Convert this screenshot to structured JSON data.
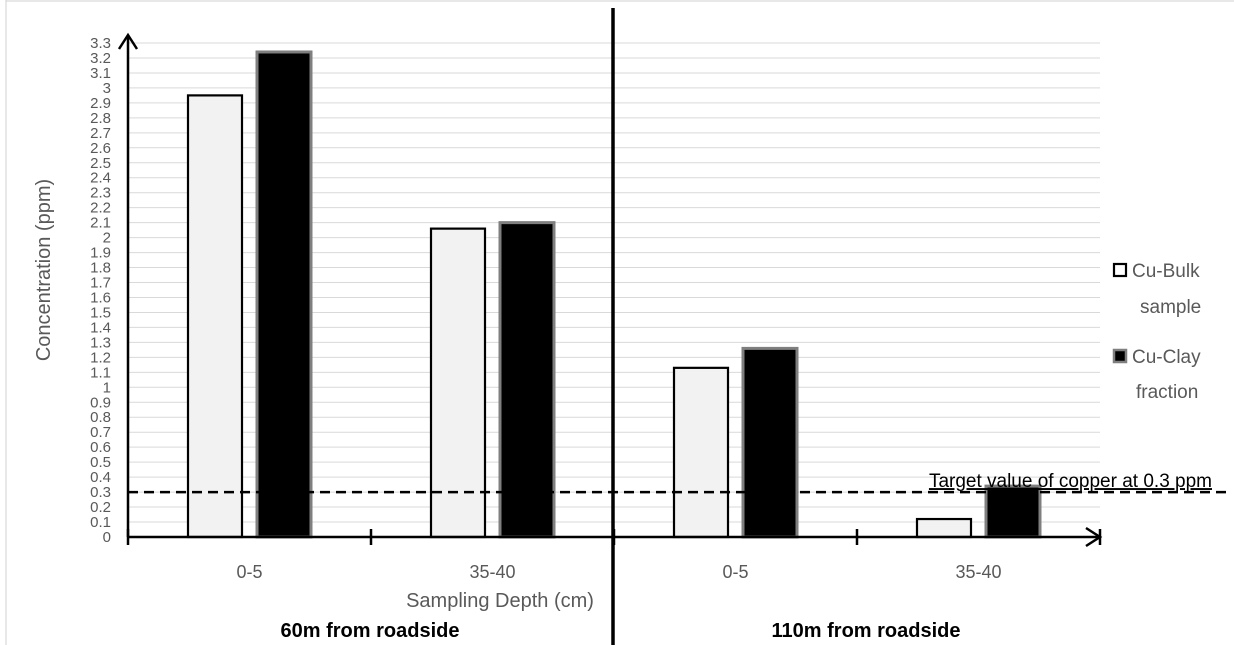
{
  "chart_data": {
    "type": "bar",
    "title": "",
    "xlabel": "Sampling Depth (cm)",
    "ylabel": "Concentration (ppm)",
    "ylim": [
      0,
      3.3
    ],
    "y_ticks": [
      "0",
      "0.1",
      "0.2",
      "0.3",
      "0.4",
      "0.5",
      "0.6",
      "0.7",
      "0.8",
      "0.9",
      "1",
      "1.1",
      "1.2",
      "1.3",
      "1.4",
      "1.5",
      "1.6",
      "1.7",
      "1.8",
      "1.9",
      "2",
      "2.1",
      "2.2",
      "2.3",
      "2.4",
      "2.5",
      "2.6",
      "2.7",
      "2.8",
      "2.9",
      "3",
      "3.1",
      "3.2",
      "3.3"
    ],
    "categories": [
      "0-5",
      "35-40",
      "0-5",
      "35-40"
    ],
    "groups": [
      "60m from roadside",
      "110m from roadside"
    ],
    "series": [
      {
        "name": "Cu-Bulk sample",
        "values": [
          2.95,
          2.06,
          1.13,
          0.12
        ]
      },
      {
        "name": "Cu-Clay fraction",
        "values": [
          3.24,
          2.1,
          1.26,
          0.34
        ]
      }
    ],
    "legend": {
      "position": "right",
      "items": [
        {
          "line1": "Cu-Bulk",
          "line2": "sample"
        },
        {
          "line1": "Cu-Clay",
          "line2": "fraction"
        }
      ]
    },
    "reference_line": {
      "value": 0.3,
      "label": "Target value of copper at 0.3 ppm"
    },
    "grid": true,
    "colors": {
      "bulk_fill": "#f2f2f2",
      "bulk_stroke": "#000000",
      "clay_fill": "#000000",
      "clay_stroke": "#7f7f7f",
      "grid": "#d9d9d9",
      "axis": "#000000",
      "label_text": "#595959"
    }
  }
}
